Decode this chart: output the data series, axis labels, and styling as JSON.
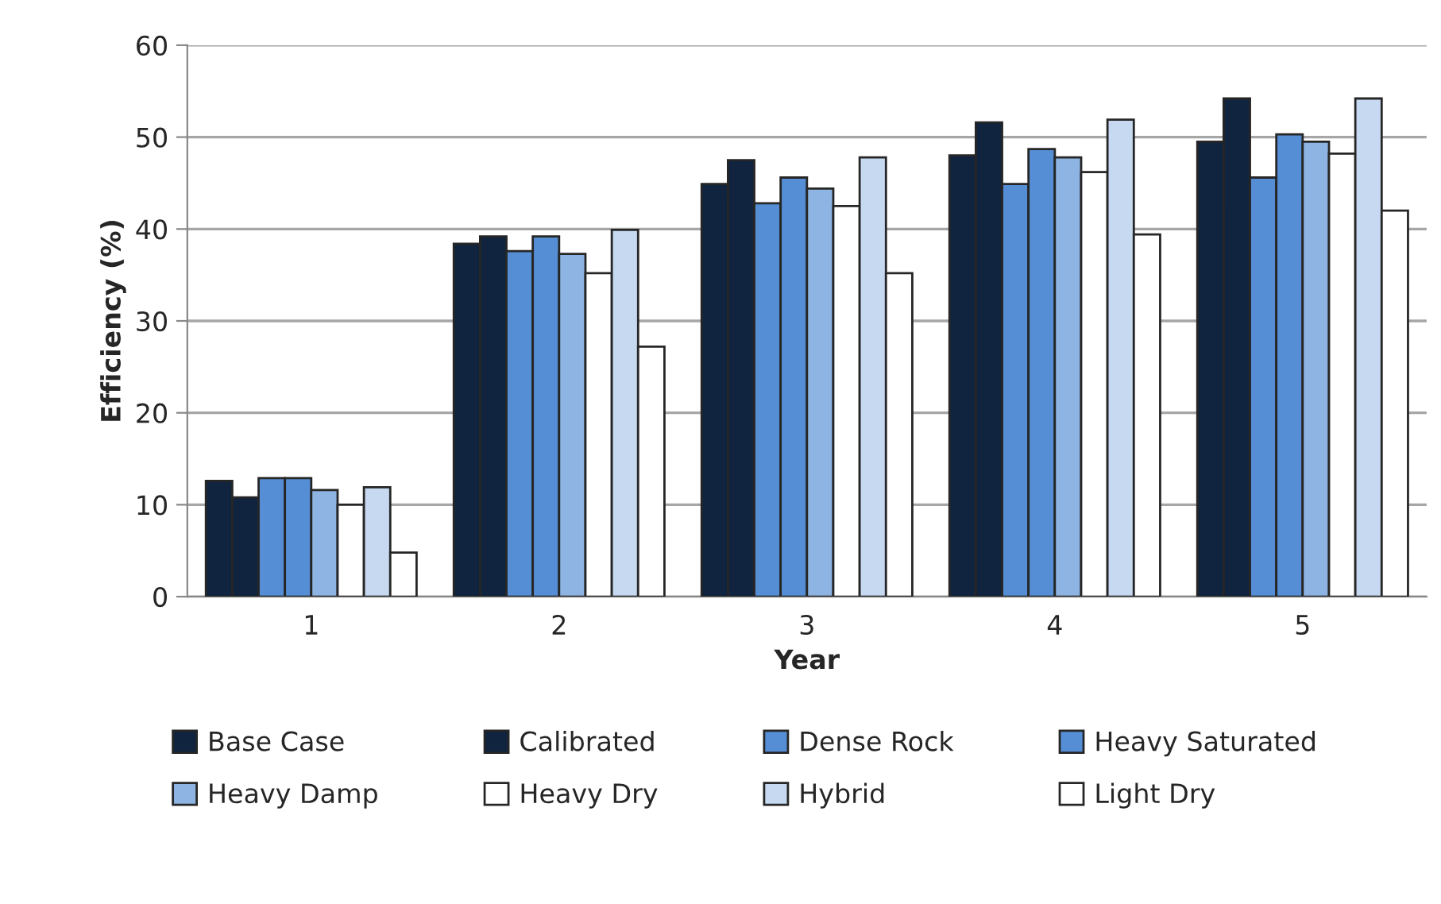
{
  "chart_data": {
    "type": "bar",
    "xlabel": "Year",
    "ylabel": "Efficiency (%)",
    "categories": [
      "1",
      "2",
      "3",
      "4",
      "5"
    ],
    "series": [
      {
        "name": "Base Case",
        "color": "#10243f",
        "values": [
          12.6,
          38.4,
          44.9,
          48.0,
          49.5
        ]
      },
      {
        "name": "Calibrated",
        "color": "#10243f",
        "values": [
          10.8,
          39.2,
          47.5,
          51.6,
          54.2
        ]
      },
      {
        "name": "Dense Rock",
        "color": "#558ed5",
        "values": [
          12.9,
          37.6,
          42.8,
          44.9,
          45.6
        ]
      },
      {
        "name": "Heavy Saturated",
        "color": "#558ed5",
        "values": [
          12.9,
          39.2,
          45.6,
          48.7,
          50.3
        ]
      },
      {
        "name": "Heavy Damp",
        "color": "#8eb4e3",
        "values": [
          11.6,
          37.3,
          44.4,
          47.8,
          49.5
        ]
      },
      {
        "name": "Heavy Dry",
        "color": "#ffffff",
        "values": [
          10.0,
          35.2,
          42.5,
          46.2,
          48.2
        ]
      },
      {
        "name": "Hybrid",
        "color": "#c6d9f1",
        "values": [
          11.9,
          39.9,
          47.8,
          51.9,
          54.2
        ]
      },
      {
        "name": "Light Dry",
        "color": "#ffffff",
        "values": [
          4.8,
          27.2,
          35.2,
          39.4,
          42.0
        ]
      }
    ],
    "ylim": [
      0,
      60
    ],
    "yticks": [
      0,
      10,
      20,
      30,
      40,
      50,
      60
    ],
    "grid": "y",
    "legend": "bottom"
  }
}
